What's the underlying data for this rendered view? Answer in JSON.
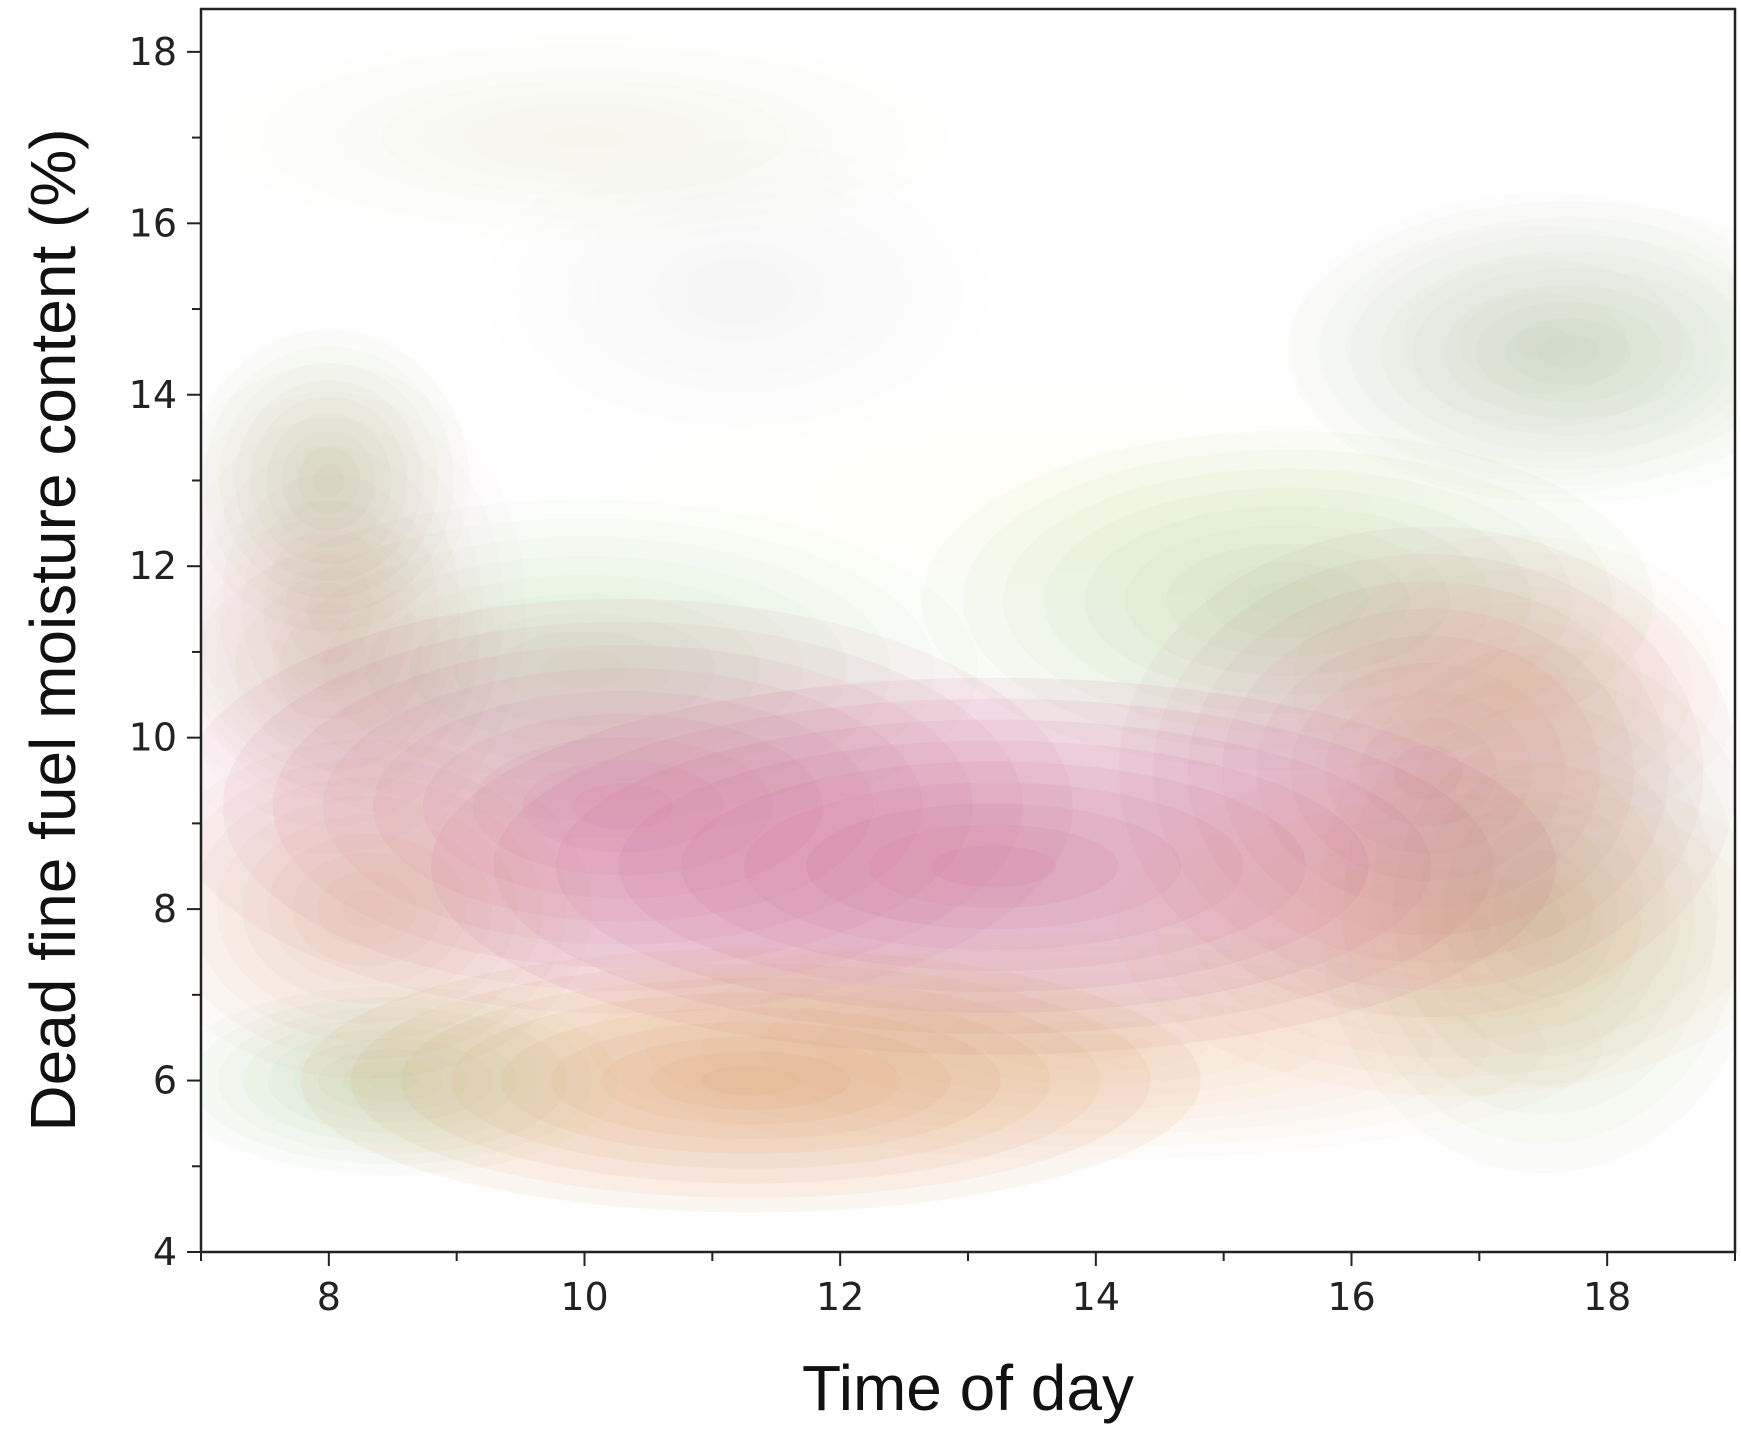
{
  "chart_data": {
    "type": "density",
    "xlabel": "Time of day",
    "ylabel": "Dead fine fuel moisture content (%)",
    "xlim": [
      7,
      19
    ],
    "ylim": [
      4,
      18.5
    ],
    "x_ticks": [
      8,
      10,
      12,
      14,
      16,
      18
    ],
    "y_ticks": [
      4,
      6,
      8,
      10,
      12,
      14,
      16,
      18
    ],
    "grid": false,
    "series": [
      {
        "color": "#8fbf6a",
        "modes": [
          {
            "x": 8.0,
            "y": 13.0,
            "sx": 0.5,
            "sy": 0.8,
            "w": 0.45
          },
          {
            "x": 8.5,
            "y": 6.0,
            "sx": 0.8,
            "sy": 0.5,
            "w": 0.5
          },
          {
            "x": 10.0,
            "y": 17.0,
            "sx": 1.3,
            "sy": 0.55,
            "w": 0.15
          },
          {
            "x": 15.5,
            "y": 11.6,
            "sx": 1.3,
            "sy": 0.9,
            "w": 0.55
          },
          {
            "x": 17.7,
            "y": 14.5,
            "sx": 1.0,
            "sy": 0.8,
            "w": 0.35
          },
          {
            "x": 17.5,
            "y": 8.0,
            "sx": 0.8,
            "sy": 1.4,
            "w": 0.45
          },
          {
            "x": 10.0,
            "y": 10.8,
            "sx": 1.4,
            "sy": 0.9,
            "w": 0.35
          },
          {
            "x": 11.2,
            "y": 15.2,
            "sx": 0.9,
            "sy": 0.8,
            "w": 0.08
          },
          {
            "x": 13.8,
            "y": 12.8,
            "sx": 1.6,
            "sy": 0.6,
            "w": 0.06
          }
        ]
      },
      {
        "color": "#c95a8a",
        "modes": [
          {
            "x": 13.2,
            "y": 8.5,
            "sx": 2.0,
            "sy": 1.0,
            "w": 1.0
          },
          {
            "x": 10.3,
            "y": 9.2,
            "sx": 1.6,
            "sy": 1.1,
            "w": 0.7
          },
          {
            "x": 16.6,
            "y": 9.6,
            "sx": 1.1,
            "sy": 1.3,
            "w": 0.55
          },
          {
            "x": 8.0,
            "y": 11.5,
            "sx": 0.7,
            "sy": 1.3,
            "w": 0.18
          },
          {
            "x": 17.5,
            "y": 14.6,
            "sx": 0.9,
            "sy": 0.8,
            "w": 0.12
          }
        ]
      },
      {
        "color": "#d9925a",
        "modes": [
          {
            "x": 11.3,
            "y": 6.0,
            "sx": 1.6,
            "sy": 0.7,
            "w": 1.0
          },
          {
            "x": 8.3,
            "y": 8.0,
            "sx": 0.8,
            "sy": 0.9,
            "w": 0.5
          },
          {
            "x": 16.8,
            "y": 7.8,
            "sx": 1.2,
            "sy": 0.9,
            "w": 0.45
          },
          {
            "x": 17.3,
            "y": 10.6,
            "sx": 0.8,
            "sy": 0.8,
            "w": 0.35
          },
          {
            "x": 8.0,
            "y": 11.0,
            "sx": 0.6,
            "sy": 0.8,
            "w": 0.2
          },
          {
            "x": 14.0,
            "y": 6.4,
            "sx": 1.8,
            "sy": 0.6,
            "w": 0.35
          }
        ]
      }
    ]
  }
}
